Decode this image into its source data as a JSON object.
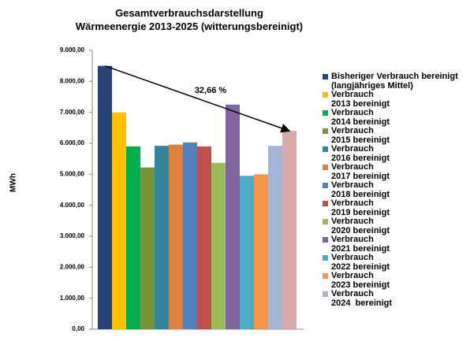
{
  "chart_data": {
    "type": "bar",
    "title": "Gesamtverbrauchsdarstellung\nWärmeenergie 2013-2025 (witterungsbereinigt)",
    "ylabel": "MWh",
    "annotation": "32,66 %",
    "ylim": [
      0,
      9000
    ],
    "yticks": [
      {
        "value": 0,
        "label": "0,00"
      },
      {
        "value": 1000,
        "label": "1.000,00"
      },
      {
        "value": 2000,
        "label": "2.000,00"
      },
      {
        "value": 3000,
        "label": "3.000,00"
      },
      {
        "value": 4000,
        "label": "4.000,00"
      },
      {
        "value": 5000,
        "label": "5.000,00"
      },
      {
        "value": 6000,
        "label": "6.000,00"
      },
      {
        "value": 7000,
        "label": "7.000,00"
      },
      {
        "value": 8000,
        "label": "8.000,00"
      },
      {
        "value": 9000,
        "label": "9.000,00"
      }
    ],
    "grid": false,
    "legend": "right",
    "series": [
      {
        "name": "Bisheriger Verbrauch bereinigt\n(langjähriges Mittel)",
        "color": "#264478",
        "values": [
          8500
        ]
      },
      {
        "name": "Verbrauch\n2013 bereinigt",
        "color": "#ffc000",
        "values": [
          7000
        ]
      },
      {
        "name": "Verbrauch\n2014 bereinigt",
        "color": "#00b050",
        "values": [
          5900
        ]
      },
      {
        "name": "Verbrauch\n2015 bereinigt",
        "color": "#77933c",
        "values": [
          5220
        ]
      },
      {
        "name": "Verbrauch\n2016 bereinigt",
        "color": "#31859c",
        "values": [
          5920
        ]
      },
      {
        "name": "Verbrauch\n2017 bereinigt",
        "color": "#e0823d",
        "values": [
          5960
        ]
      },
      {
        "name": "Verbrauch\n2018 bereinigt",
        "color": "#4f81bd",
        "values": [
          6030
        ]
      },
      {
        "name": "Verbrauch\n2019 bereinigt",
        "color": "#c0504d",
        "values": [
          5900
        ]
      },
      {
        "name": "Verbrauch\n2020 bereinigt",
        "color": "#9bbb59",
        "values": [
          5370
        ]
      },
      {
        "name": "Verbrauch\n2021 bereinigt",
        "color": "#8064a2",
        "values": [
          7250
        ]
      },
      {
        "name": "Verbrauch\n2022 bereinigt",
        "color": "#4bacc6",
        "values": [
          4950
        ]
      },
      {
        "name": "Verbrauch\n2023 bereinigt",
        "color": "#f79646",
        "values": [
          5000
        ]
      },
      {
        "name": "Verbrauch\n2024  bereinigt",
        "color": "#a5b5d8",
        "values": [
          5920
        ]
      },
      {
        "name": null,
        "color": "#d9a8a8",
        "values": [
          6400
        ]
      }
    ]
  }
}
